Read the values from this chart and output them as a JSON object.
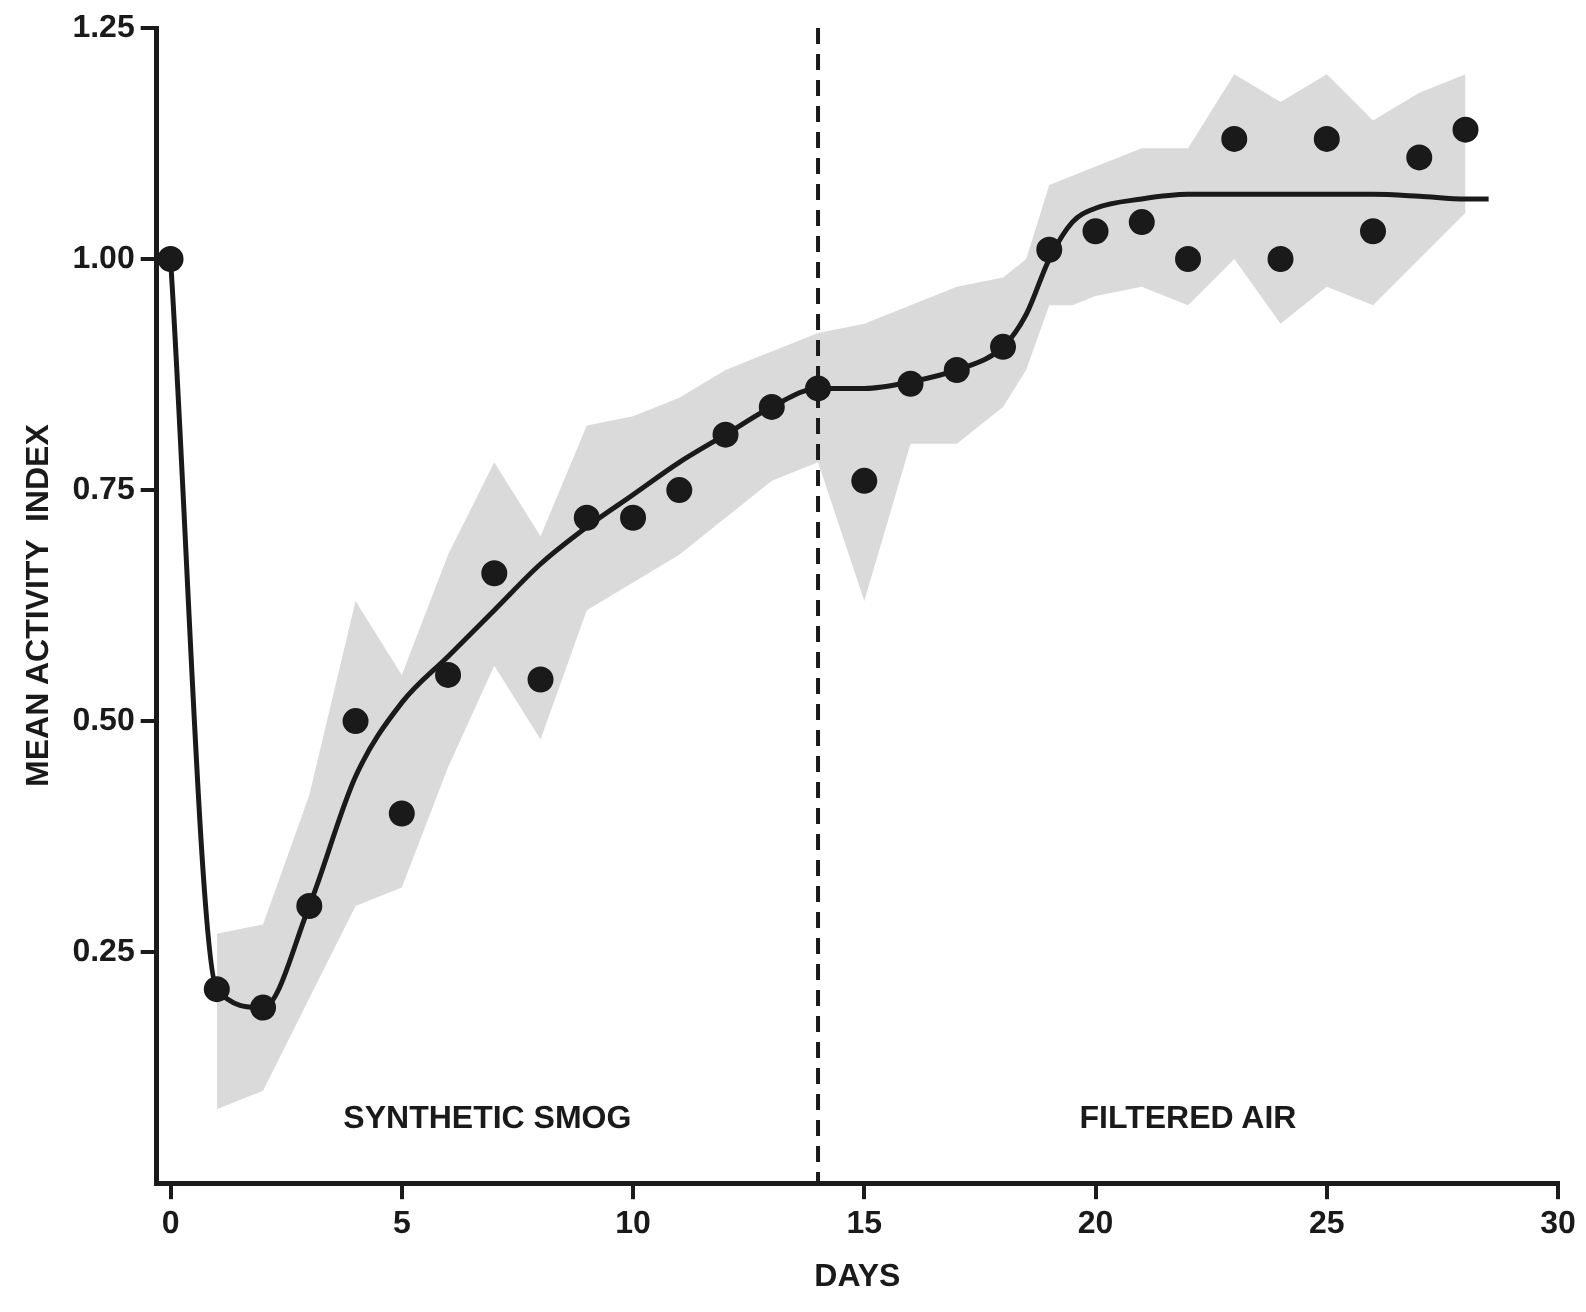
{
  "chart_data": {
    "type": "scatter",
    "xlabel": "DAYS",
    "ylabel": "MEAN ACTIVITY  INDEX",
    "xlim": [
      -0.3,
      30
    ],
    "xticks": [
      0,
      5,
      10,
      15,
      20,
      25,
      30
    ],
    "ylim": [
      0,
      1.25
    ],
    "yticks": [
      {
        "value": 0.25,
        "label": "0.25"
      },
      {
        "value": 0.5,
        "label": "0.50"
      },
      {
        "value": 0.75,
        "label": "0.75"
      },
      {
        "value": 1,
        "label": "1.00"
      },
      {
        "value": 1.25,
        "label": "1.25"
      }
    ],
    "grid": false,
    "legend": false,
    "series": [
      {
        "marker": "circle",
        "color": "#1a1a1a",
        "x": [
          0,
          1,
          2,
          3,
          4,
          5,
          6,
          7,
          8,
          9,
          10,
          11,
          12,
          13,
          14,
          15,
          16,
          17,
          18,
          19,
          20,
          21,
          22,
          23,
          24,
          25,
          26,
          27,
          28
        ],
        "values": [
          1.0,
          0.21,
          0.19,
          0.3,
          0.5,
          0.4,
          0.55,
          0.66,
          0.545,
          0.72,
          0.72,
          0.75,
          0.81,
          0.84,
          0.86,
          0.76,
          0.865,
          0.88,
          0.905,
          1.01,
          1.03,
          1.04,
          1.0,
          1.13,
          1.0,
          1.13,
          1.03,
          1.11,
          1.14
        ]
      },
      {
        "type": "line",
        "marker": "none",
        "line_style": "solid",
        "color": "#1a1a1a",
        "x": [
          0,
          1,
          2,
          3,
          4,
          5,
          6,
          7,
          8,
          9,
          10,
          11,
          12,
          13,
          14,
          15,
          16,
          17,
          18,
          18.5,
          19,
          19.5,
          20,
          21,
          22,
          23,
          24,
          25,
          26,
          27,
          28,
          28.5
        ],
        "values": [
          1.0,
          0.21,
          0.19,
          0.3,
          0.44,
          0.52,
          0.57,
          0.62,
          0.67,
          0.71,
          0.745,
          0.78,
          0.81,
          0.84,
          0.86,
          0.86,
          0.867,
          0.88,
          0.905,
          0.94,
          1.0,
          1.04,
          1.055,
          1.065,
          1.07,
          1.07,
          1.07,
          1.07,
          1.07,
          1.068,
          1.065,
          1.065
        ],
        "lower": [
          null,
          0.08,
          0.1,
          0.2,
          0.3,
          0.32,
          0.45,
          0.56,
          0.48,
          0.62,
          0.65,
          0.68,
          0.72,
          0.76,
          0.78,
          0.63,
          0.8,
          0.8,
          0.84,
          0.88,
          0.95,
          0.95,
          0.96,
          0.97,
          0.95,
          1.0,
          0.93,
          0.97,
          0.95,
          1.0,
          1.05,
          null
        ],
        "upper": [
          null,
          0.27,
          0.28,
          0.42,
          0.63,
          0.55,
          0.68,
          0.78,
          0.7,
          0.82,
          0.83,
          0.85,
          0.88,
          0.9,
          0.92,
          0.93,
          0.95,
          0.97,
          0.98,
          1.0,
          1.08,
          1.09,
          1.1,
          1.12,
          1.12,
          1.2,
          1.17,
          1.2,
          1.15,
          1.18,
          1.2,
          null
        ]
      }
    ],
    "ref_lines": [
      {
        "axis": "x",
        "value": 14,
        "line_style": "dashed",
        "color": "#1a1a1a"
      }
    ],
    "annotations": [
      "SYNTHETIC SMOG",
      "FILTERED AIR"
    ]
  }
}
